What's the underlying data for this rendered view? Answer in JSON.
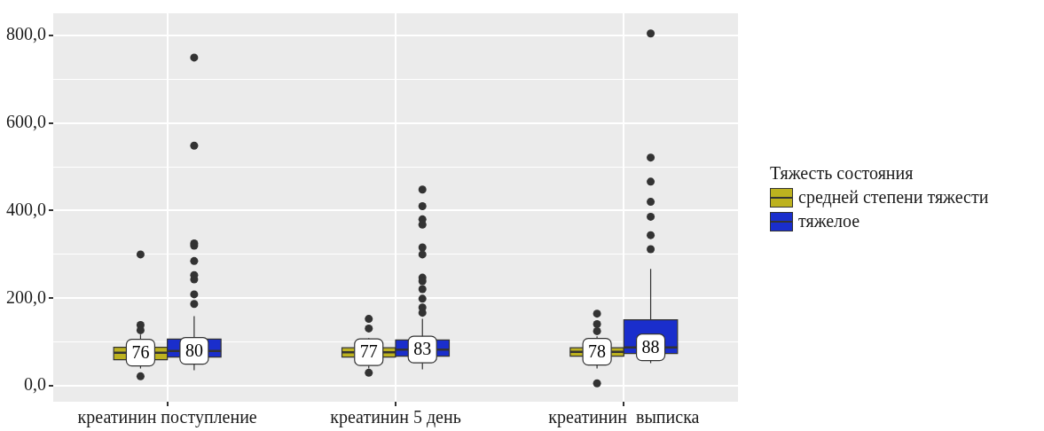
{
  "chart_data": {
    "type": "box",
    "legend_title": "Тяжесть состояния",
    "legend": "right",
    "grid": true,
    "categories": [
      "креатинин поступление",
      "креатинин 5 день",
      "креатинин  выписка"
    ],
    "ylim": [
      -36,
      850
    ],
    "yticks": [
      {
        "value": 0,
        "label": "0,0"
      },
      {
        "value": 100,
        "label": null
      },
      {
        "value": 200,
        "label": "200,0"
      },
      {
        "value": 300,
        "label": null
      },
      {
        "value": 400,
        "label": "400,0"
      },
      {
        "value": 500,
        "label": null
      },
      {
        "value": 600,
        "label": "600,0"
      },
      {
        "value": 700,
        "label": null
      },
      {
        "value": 800,
        "label": "800,0"
      }
    ],
    "series": [
      {
        "name": "средней степени тяжести",
        "color": "#bdb21f",
        "value_labels": [
          "76",
          "77",
          "78"
        ],
        "boxes": [
          {
            "low": 40,
            "q1": 60,
            "median": 76,
            "q3": 88,
            "high": 117,
            "outliers": [
              300,
              139,
              127,
              22
            ]
          },
          {
            "low": 40,
            "q1": 66,
            "median": 77,
            "q3": 87,
            "high": 109,
            "outliers": [
              153,
              131,
              30
            ]
          },
          {
            "low": 40,
            "q1": 68,
            "median": 78,
            "q3": 87,
            "high": 113,
            "outliers": [
              165,
              141,
              125,
              6
            ]
          }
        ]
      },
      {
        "name": "тяжелое",
        "color": "#1a2ecc",
        "value_labels": [
          "80",
          "83",
          "88"
        ],
        "boxes": [
          {
            "low": 36,
            "q1": 66,
            "median": 80,
            "q3": 107,
            "high": 159,
            "outliers": [
              749,
              548,
              325,
              320,
              285,
              253,
              243,
              209,
              187
            ]
          },
          {
            "low": 38,
            "q1": 68,
            "median": 83,
            "q3": 105,
            "high": 153,
            "outliers": [
              448,
              410,
              380,
              368,
              316,
              300,
              247,
              239,
              221,
              199,
              179,
              167
            ]
          },
          {
            "low": 52,
            "q1": 74,
            "median": 88,
            "q3": 151,
            "high": 267,
            "outliers": [
              804,
              521,
              466,
              420,
              386,
              344,
              312
            ]
          }
        ]
      }
    ]
  }
}
